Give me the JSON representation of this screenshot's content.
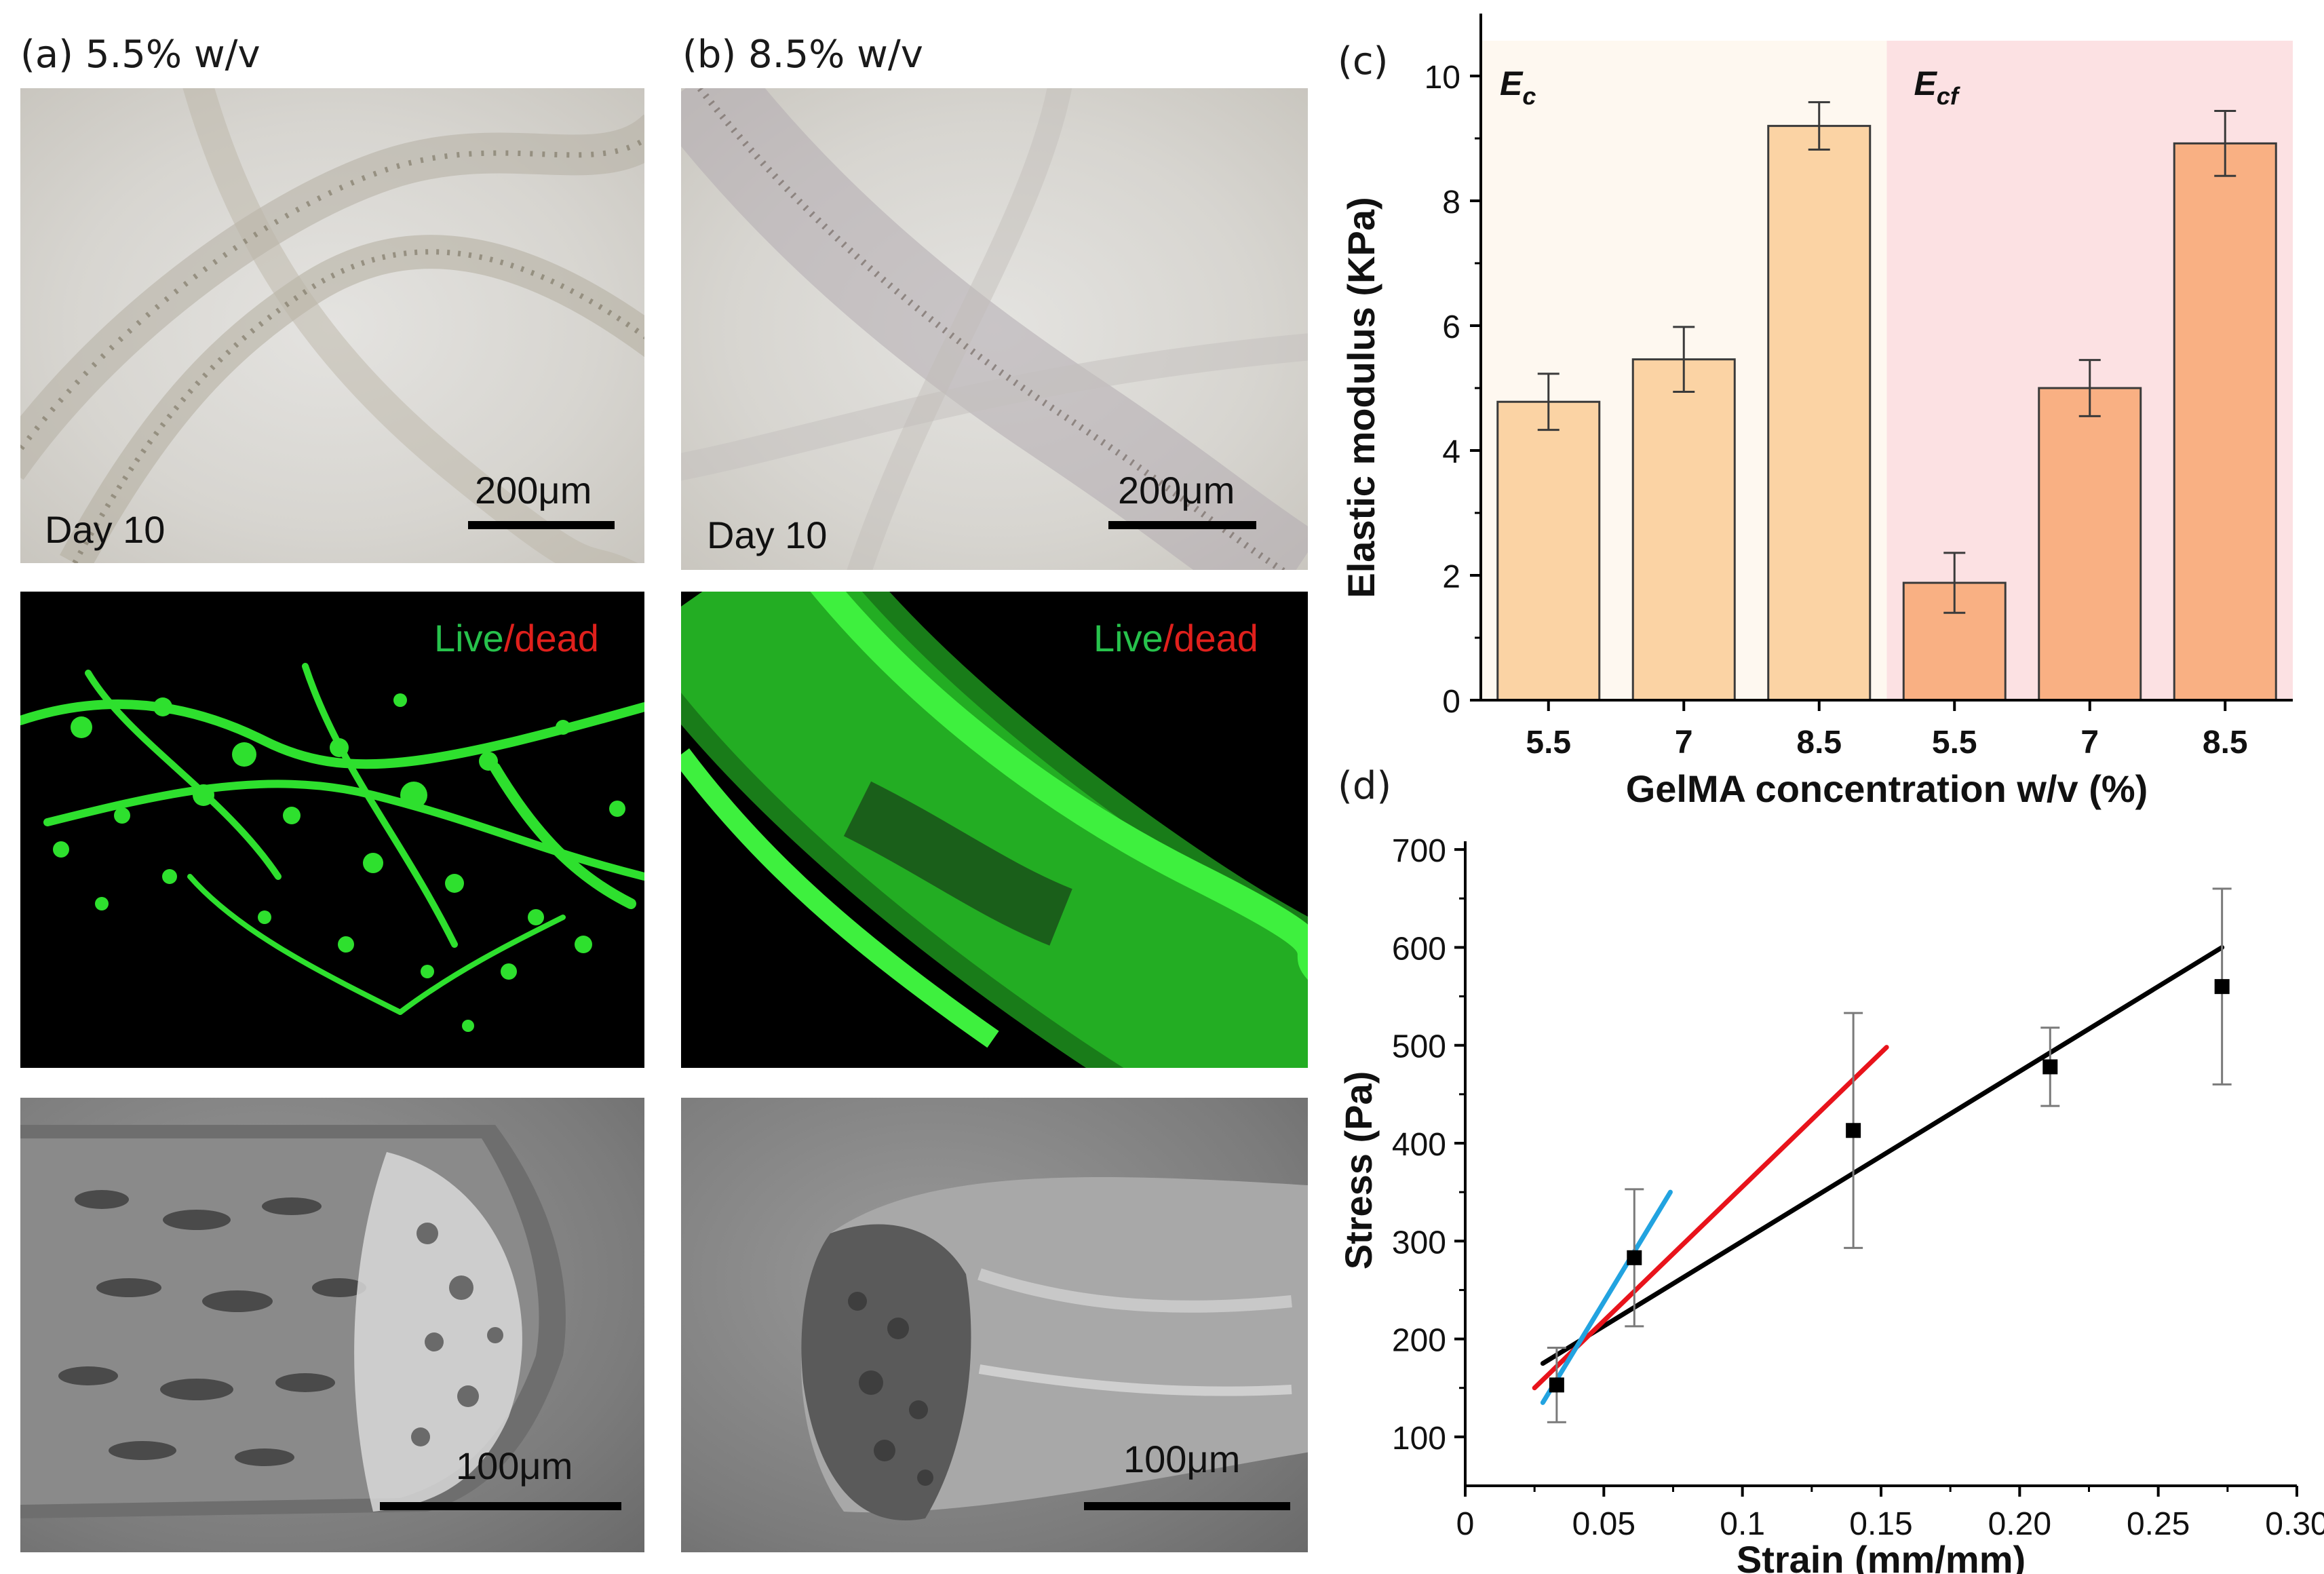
{
  "panels": {
    "a_label": "(a) 5.5% w/v",
    "b_label": "(b) 8.5% w/v",
    "c_label": "(c)",
    "d_label": "(d)"
  },
  "micrographs": {
    "a_bright": {
      "scale": "200μm",
      "day": "Day 10"
    },
    "b_bright": {
      "scale": "200μm",
      "day": "Day 10"
    },
    "a_fluor": {
      "live": "Live",
      "slash": "/",
      "dead": "dead"
    },
    "b_fluor": {
      "live": "Live",
      "slash": "/",
      "dead": "dead"
    },
    "a_sem": {
      "scale": "100μm"
    },
    "b_sem": {
      "scale": "100μm"
    }
  },
  "colors": {
    "bar_ec": "#fbd3a4",
    "bar_ecf": "#f9b083",
    "bg_ec": "#fef8f0",
    "bg_ecf": "#fce1e3",
    "fit_black": "#000000",
    "fit_red": "#e8131b",
    "fit_blue": "#22a3e0",
    "live": "#27c24c",
    "dead": "#e0201c"
  },
  "chart_data": [
    {
      "type": "bar",
      "xlabel": "GelMA concentration w/v (%)",
      "ylabel": "Elastic modulus (KPa)",
      "ylim": [
        0,
        11
      ],
      "yticks": [
        0,
        2,
        4,
        6,
        8,
        10
      ],
      "groups": [
        {
          "name_main": "E",
          "name_sub": "c",
          "categories": [
            "5.5",
            "7",
            "8.5"
          ],
          "values": [
            4.78,
            5.46,
            9.2
          ],
          "errors": [
            0.45,
            0.52,
            0.38
          ]
        },
        {
          "name_main": "E",
          "name_sub": "cf",
          "categories": [
            "5.5",
            "7",
            "8.5"
          ],
          "values": [
            1.88,
            5.0,
            8.92
          ],
          "errors": [
            0.48,
            0.45,
            0.52
          ]
        }
      ]
    },
    {
      "type": "scatter",
      "xlabel": "Strain (mm/mm)",
      "ylabel": "Stress (Pa)",
      "xlim": [
        0,
        0.3
      ],
      "ylim": [
        50,
        750
      ],
      "xticks": [
        "0",
        "0.05",
        "0.1",
        "0.15",
        "0.20",
        "0.25",
        "0.30"
      ],
      "xtick_values": [
        0,
        0.05,
        0.1,
        0.15,
        0.2,
        0.25,
        0.3
      ],
      "yticks": [
        100,
        200,
        300,
        400,
        500,
        600,
        700
      ],
      "points": {
        "x": [
          0.033,
          0.061,
          0.14,
          0.211,
          0.273
        ],
        "y": [
          153,
          283,
          413,
          478,
          560
        ],
        "err": [
          38,
          70,
          120,
          40,
          100
        ]
      },
      "fits": [
        {
          "color": "black",
          "x": [
            0.028,
            0.273
          ],
          "y": [
            175,
            600
          ]
        },
        {
          "color": "red",
          "x": [
            0.025,
            0.152
          ],
          "y": [
            150,
            498
          ]
        },
        {
          "color": "blue",
          "x": [
            0.028,
            0.074
          ],
          "y": [
            135,
            350
          ]
        }
      ]
    }
  ]
}
